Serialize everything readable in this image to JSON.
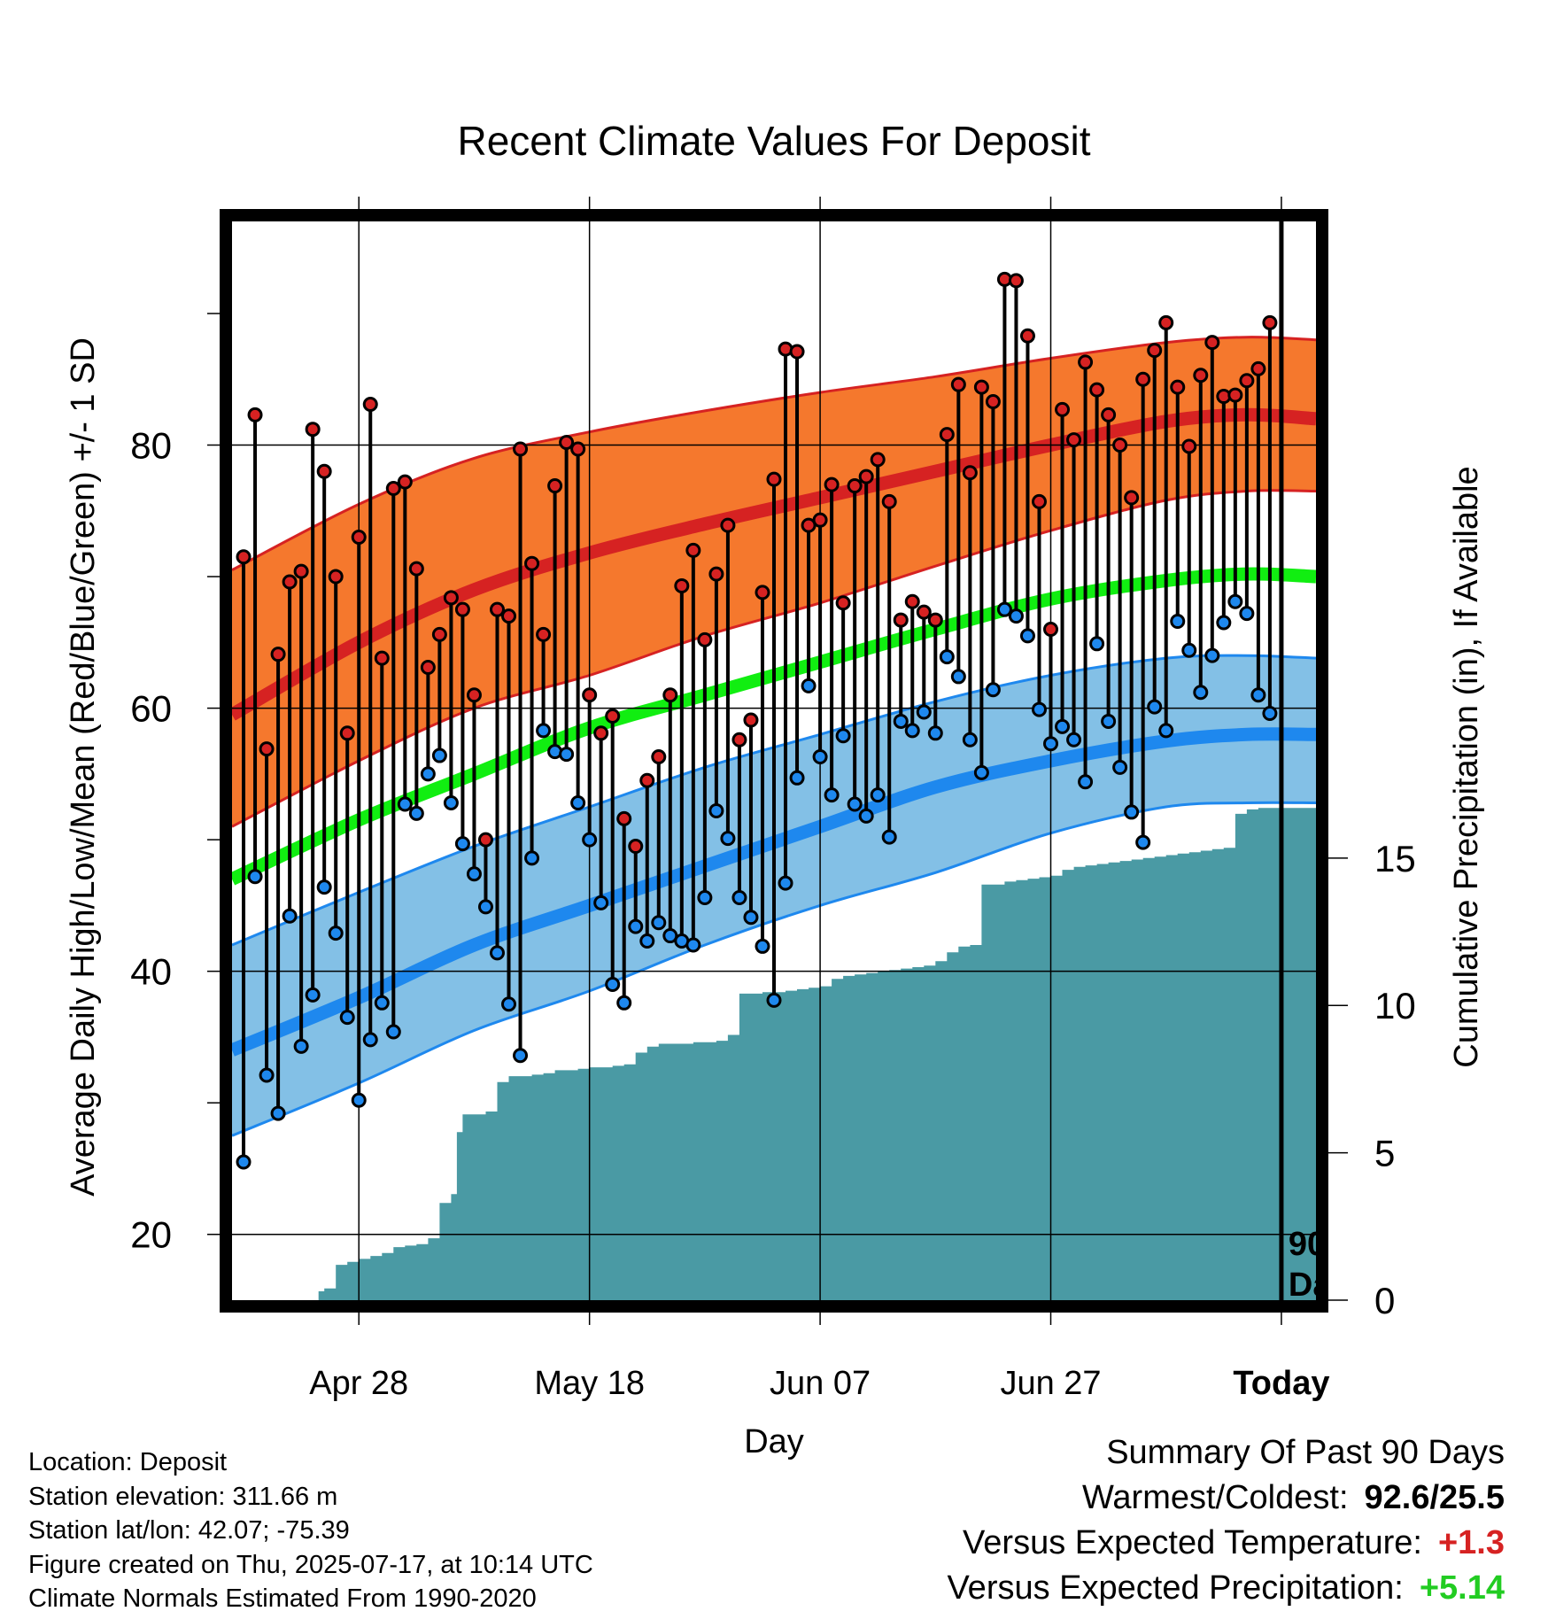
{
  "chart_data": {
    "type": "line",
    "title": "Recent Climate Values For Deposit",
    "xlabel": "Day",
    "ylabel": "Average Daily High/Low/Mean (Red/Blue/Green) +/- 1 SD",
    "ylabel_right": "Cumulative Precipitation (in), If Available",
    "x_ticks": [
      "Apr 28",
      "May 18",
      "Jun 07",
      "Jun 27",
      "Today"
    ],
    "x_tick_days": [
      10,
      30,
      50,
      70,
      90
    ],
    "xlim": [
      -1,
      93
    ],
    "ylim": [
      15,
      97
    ],
    "y_ticks": [
      20,
      40,
      60,
      80
    ],
    "y2lim": [
      0,
      36.6
    ],
    "y2_ticks": [
      0,
      5,
      10,
      15
    ],
    "grid": true,
    "today_marker_label": [
      "90",
      "Days"
    ],
    "colors": {
      "high": "#d62222",
      "high_band": "#f5782d",
      "low": "#1e88ee",
      "low_band": "#83c0e6",
      "mean": "#11ee11",
      "precip": "#4a9aa4"
    },
    "normals": {
      "high_mean": [
        [
          -1,
          59.5
        ],
        [
          10,
          65
        ],
        [
          20,
          69
        ],
        [
          30,
          71.8
        ],
        [
          40,
          74
        ],
        [
          50,
          76
        ],
        [
          60,
          78
        ],
        [
          70,
          80
        ],
        [
          80,
          81.8
        ],
        [
          87,
          82.3
        ],
        [
          93,
          82
        ]
      ],
      "high_plus_sd": [
        [
          -1,
          70.5
        ],
        [
          10,
          75.5
        ],
        [
          20,
          79
        ],
        [
          30,
          81
        ],
        [
          40,
          82.6
        ],
        [
          50,
          84
        ],
        [
          60,
          85.2
        ],
        [
          70,
          86.6
        ],
        [
          80,
          87.8
        ],
        [
          87,
          88.2
        ],
        [
          93,
          88
        ]
      ],
      "high_minus_sd": [
        [
          -1,
          51
        ],
        [
          10,
          56
        ],
        [
          20,
          60
        ],
        [
          30,
          62.5
        ],
        [
          40,
          65.5
        ],
        [
          50,
          68
        ],
        [
          60,
          70.8
        ],
        [
          70,
          73.5
        ],
        [
          80,
          75.8
        ],
        [
          87,
          76.5
        ],
        [
          93,
          76.5
        ]
      ],
      "low_mean": [
        [
          -1,
          34
        ],
        [
          10,
          38
        ],
        [
          20,
          42
        ],
        [
          30,
          45
        ],
        [
          40,
          48
        ],
        [
          50,
          51
        ],
        [
          60,
          54
        ],
        [
          70,
          56
        ],
        [
          80,
          57.5
        ],
        [
          87,
          58
        ],
        [
          93,
          58
        ]
      ],
      "low_plus_sd": [
        [
          -1,
          42
        ],
        [
          10,
          46
        ],
        [
          20,
          49.5
        ],
        [
          30,
          52.5
        ],
        [
          40,
          55.5
        ],
        [
          50,
          58
        ],
        [
          60,
          60.5
        ],
        [
          70,
          62.5
        ],
        [
          80,
          63.8
        ],
        [
          87,
          64
        ],
        [
          93,
          63.8
        ]
      ],
      "low_minus_sd": [
        [
          -1,
          27.5
        ],
        [
          10,
          31.5
        ],
        [
          20,
          35.5
        ],
        [
          30,
          38.5
        ],
        [
          40,
          42
        ],
        [
          50,
          45
        ],
        [
          60,
          47.5
        ],
        [
          70,
          50.5
        ],
        [
          80,
          52.5
        ],
        [
          87,
          52.8
        ],
        [
          93,
          52.8
        ]
      ],
      "mean": [
        [
          -1,
          47
        ],
        [
          10,
          51.5
        ],
        [
          20,
          55
        ],
        [
          30,
          58.5
        ],
        [
          40,
          61
        ],
        [
          50,
          63.5
        ],
        [
          60,
          66
        ],
        [
          70,
          68.3
        ],
        [
          80,
          69.7
        ],
        [
          87,
          70.2
        ],
        [
          93,
          70
        ]
      ]
    },
    "daily_high": [
      71.5,
      82.3,
      56.9,
      64.1,
      69.6,
      70.4,
      81.2,
      78.0,
      70.0,
      58.1,
      73.0,
      83.1,
      63.8,
      76.7,
      77.2,
      70.6,
      63.1,
      65.6,
      68.4,
      67.5,
      61.0,
      50.0,
      67.5,
      67.0,
      79.7,
      71.0,
      65.6,
      76.9,
      80.2,
      79.7,
      61.0,
      58.1,
      59.4,
      51.6,
      49.5,
      54.5,
      56.3,
      61.0,
      69.3,
      72.0,
      65.2,
      70.2,
      73.9,
      57.6,
      59.1,
      68.8,
      77.4,
      87.3,
      87.1,
      73.9,
      74.3,
      77.0,
      68.0,
      76.9,
      77.6,
      78.9,
      75.7,
      66.7,
      68.1,
      67.3,
      66.7,
      80.8,
      84.6,
      77.9,
      84.4,
      83.3,
      92.6,
      92.5,
      88.3,
      75.7,
      66.0,
      82.7,
      80.4,
      86.3,
      84.2,
      82.3,
      80.0,
      76.0,
      85.0,
      87.2,
      89.3,
      84.4,
      79.9,
      85.3,
      87.8,
      83.7,
      83.8,
      84.9,
      85.8,
      89.3
    ],
    "daily_low": [
      25.5,
      47.2,
      32.1,
      29.2,
      44.2,
      34.3,
      38.2,
      46.4,
      42.9,
      36.5,
      30.2,
      34.8,
      37.6,
      35.4,
      52.7,
      52.0,
      55.0,
      56.4,
      52.8,
      49.7,
      47.4,
      44.9,
      41.4,
      37.5,
      33.6,
      48.6,
      58.3,
      56.7,
      56.5,
      52.8,
      50.0,
      45.2,
      39.0,
      37.6,
      43.4,
      42.3,
      43.7,
      42.7,
      42.3,
      42.0,
      45.6,
      52.2,
      50.1,
      45.6,
      44.1,
      41.9,
      37.8,
      46.7,
      54.7,
      61.7,
      56.3,
      53.4,
      57.9,
      52.7,
      51.8,
      53.4,
      50.2,
      59.0,
      58.3,
      59.7,
      58.1,
      63.9,
      62.4,
      57.6,
      55.1,
      61.4,
      67.5,
      67.0,
      65.5,
      59.9,
      57.3,
      58.6,
      57.6,
      54.4,
      64.9,
      59.0,
      55.5,
      52.1,
      49.8,
      60.1,
      58.3,
      66.6,
      64.4,
      61.2,
      64.0,
      66.5,
      68.1,
      67.2,
      61.0,
      59.6
    ],
    "cumulative_precip": [
      [
        6,
        0
      ],
      [
        6.5,
        0.3
      ],
      [
        7,
        0.4
      ],
      [
        8,
        1.2
      ],
      [
        9,
        1.3
      ],
      [
        10,
        1.4
      ],
      [
        11,
        1.5
      ],
      [
        12,
        1.6
      ],
      [
        13,
        1.8
      ],
      [
        14,
        1.85
      ],
      [
        15,
        1.9
      ],
      [
        16,
        2.1
      ],
      [
        17,
        3.3
      ],
      [
        18,
        3.6
      ],
      [
        18.5,
        5.7
      ],
      [
        19,
        6.3
      ],
      [
        20,
        6.3
      ],
      [
        21,
        6.4
      ],
      [
        22,
        7.4
      ],
      [
        23,
        7.6
      ],
      [
        24,
        7.6
      ],
      [
        25,
        7.65
      ],
      [
        26,
        7.7
      ],
      [
        27,
        7.8
      ],
      [
        28,
        7.8
      ],
      [
        29,
        7.85
      ],
      [
        30,
        7.9
      ],
      [
        31,
        7.9
      ],
      [
        32,
        7.95
      ],
      [
        33,
        8.0
      ],
      [
        34,
        8.4
      ],
      [
        35,
        8.6
      ],
      [
        36,
        8.7
      ],
      [
        37,
        8.7
      ],
      [
        38,
        8.7
      ],
      [
        39,
        8.75
      ],
      [
        40,
        8.75
      ],
      [
        41,
        8.8
      ],
      [
        42,
        9.0
      ],
      [
        43,
        10.4
      ],
      [
        44,
        10.4
      ],
      [
        45,
        10.45
      ],
      [
        46,
        10.45
      ],
      [
        47,
        10.5
      ],
      [
        48,
        10.55
      ],
      [
        49,
        10.6
      ],
      [
        50,
        10.65
      ],
      [
        51,
        10.9
      ],
      [
        52,
        11.0
      ],
      [
        53,
        11.05
      ],
      [
        54,
        11.1
      ],
      [
        55,
        11.15
      ],
      [
        56,
        11.2
      ],
      [
        57,
        11.25
      ],
      [
        58,
        11.3
      ],
      [
        59,
        11.35
      ],
      [
        60,
        11.5
      ],
      [
        61,
        11.8
      ],
      [
        62,
        12.0
      ],
      [
        63,
        12.05
      ],
      [
        64,
        14.1
      ],
      [
        65,
        14.1
      ],
      [
        66,
        14.2
      ],
      [
        67,
        14.25
      ],
      [
        68,
        14.3
      ],
      [
        69,
        14.35
      ],
      [
        70,
        14.4
      ],
      [
        71,
        14.6
      ],
      [
        72,
        14.7
      ],
      [
        73,
        14.75
      ],
      [
        74,
        14.8
      ],
      [
        75,
        14.85
      ],
      [
        76,
        14.9
      ],
      [
        77,
        14.95
      ],
      [
        78,
        15.0
      ],
      [
        79,
        15.05
      ],
      [
        80,
        15.1
      ],
      [
        81,
        15.15
      ],
      [
        82,
        15.2
      ],
      [
        83,
        15.25
      ],
      [
        84,
        15.3
      ],
      [
        85,
        15.35
      ],
      [
        86,
        16.5
      ],
      [
        87,
        16.65
      ],
      [
        88,
        16.7
      ],
      [
        89,
        16.7
      ],
      [
        90,
        16.7
      ],
      [
        91,
        16.7
      ],
      [
        92,
        16.7
      ],
      [
        93,
        16.7
      ]
    ]
  },
  "info": {
    "location": "Location: Deposit",
    "elevation": "Station elevation: 311.66 m",
    "latlon": "Station lat/lon: 42.07; -75.39",
    "created": "Figure created on Thu, 2025-07-17, at 10:14 UTC",
    "normals": "Climate Normals Estimated From 1990-2020"
  },
  "summary": {
    "heading": "Summary Of Past 90 Days",
    "warmest_label": "Warmest/Coldest:",
    "warmest_value": "92.6/25.5",
    "temp_label": "Versus Expected Temperature:",
    "temp_value": "+1.3",
    "precip_label": "Versus Expected Precipitation:",
    "precip_value": "+5.14"
  }
}
